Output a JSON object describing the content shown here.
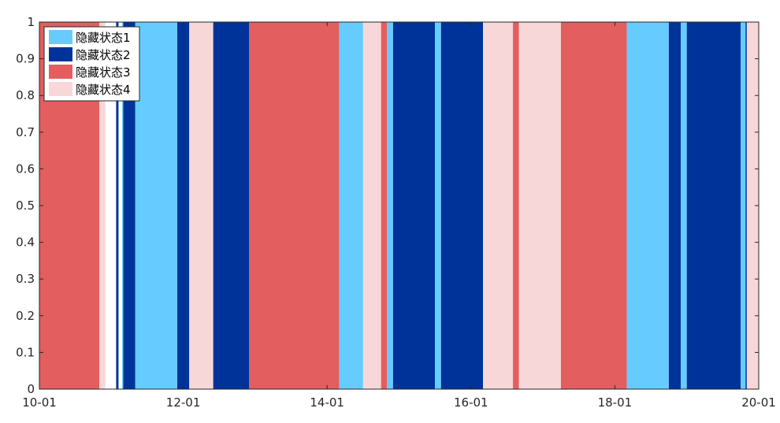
{
  "chart_data": {
    "type": "area",
    "title": "",
    "xlabel": "",
    "ylabel": "",
    "ylim": [
      0,
      1
    ],
    "y_ticks": [
      "0",
      "0.1",
      "0.2",
      "0.3",
      "0.4",
      "0.5",
      "0.6",
      "0.7",
      "0.8",
      "0.9",
      "1"
    ],
    "xlim": [
      "2010-01",
      "2020-01"
    ],
    "x_ticks": [
      {
        "label": "10-01",
        "date": "2010-01"
      },
      {
        "label": "12-01",
        "date": "2012-01"
      },
      {
        "label": "14-01",
        "date": "2014-01"
      },
      {
        "label": "16-01",
        "date": "2016-01"
      },
      {
        "label": "18-01",
        "date": "2018-01"
      },
      {
        "label": "20-01",
        "date": "2020-01"
      }
    ],
    "legend_position": "top-left",
    "states": [
      {
        "name": "隐藏状态1",
        "color": "#66CCFF"
      },
      {
        "name": "隐藏状态2",
        "color": "#003399"
      },
      {
        "name": "隐藏状态3",
        "color": "#E35E5F"
      },
      {
        "name": "隐藏状态4",
        "color": "#F8D7D8"
      }
    ],
    "segments": [
      {
        "start": "2010-01",
        "end": "2010-11",
        "state": 3
      },
      {
        "start": "2010-11",
        "end": "2010-12",
        "state": 4
      },
      {
        "start": "2011-02",
        "end": "2011-02",
        "state": 2
      },
      {
        "start": "2011-03",
        "end": "2011-03",
        "state": 1
      },
      {
        "start": "2011-03",
        "end": "2011-05",
        "state": 2
      },
      {
        "start": "2011-05",
        "end": "2011-12",
        "state": 1
      },
      {
        "start": "2011-12",
        "end": "2012-02",
        "state": 2
      },
      {
        "start": "2012-02",
        "end": "2012-06",
        "state": 4
      },
      {
        "start": "2012-06",
        "end": "2012-12",
        "state": 2
      },
      {
        "start": "2012-12",
        "end": "2014-03",
        "state": 3
      },
      {
        "start": "2014-03",
        "end": "2014-07",
        "state": 1
      },
      {
        "start": "2014-07",
        "end": "2014-10",
        "state": 4
      },
      {
        "start": "2014-10",
        "end": "2014-11",
        "state": 3
      },
      {
        "start": "2014-11",
        "end": "2014-12",
        "state": 1
      },
      {
        "start": "2014-12",
        "end": "2015-07",
        "state": 2
      },
      {
        "start": "2015-07",
        "end": "2015-08",
        "state": 1
      },
      {
        "start": "2015-08",
        "end": "2016-03",
        "state": 2
      },
      {
        "start": "2016-03",
        "end": "2016-08",
        "state": 4
      },
      {
        "start": "2016-08",
        "end": "2016-09",
        "state": 3
      },
      {
        "start": "2016-09",
        "end": "2017-04",
        "state": 4
      },
      {
        "start": "2017-04",
        "end": "2018-03",
        "state": 3
      },
      {
        "start": "2018-03",
        "end": "2018-10",
        "state": 1
      },
      {
        "start": "2018-10",
        "end": "2018-12",
        "state": 2
      },
      {
        "start": "2018-12",
        "end": "2019-01",
        "state": 1
      },
      {
        "start": "2019-01",
        "end": "2019-10",
        "state": 2
      },
      {
        "start": "2019-10",
        "end": "2019-11",
        "state": 1
      },
      {
        "start": "2019-11",
        "end": "2019-11",
        "state": 2
      },
      {
        "start": "2019-11",
        "end": "2020-01",
        "state": 4
      }
    ]
  }
}
